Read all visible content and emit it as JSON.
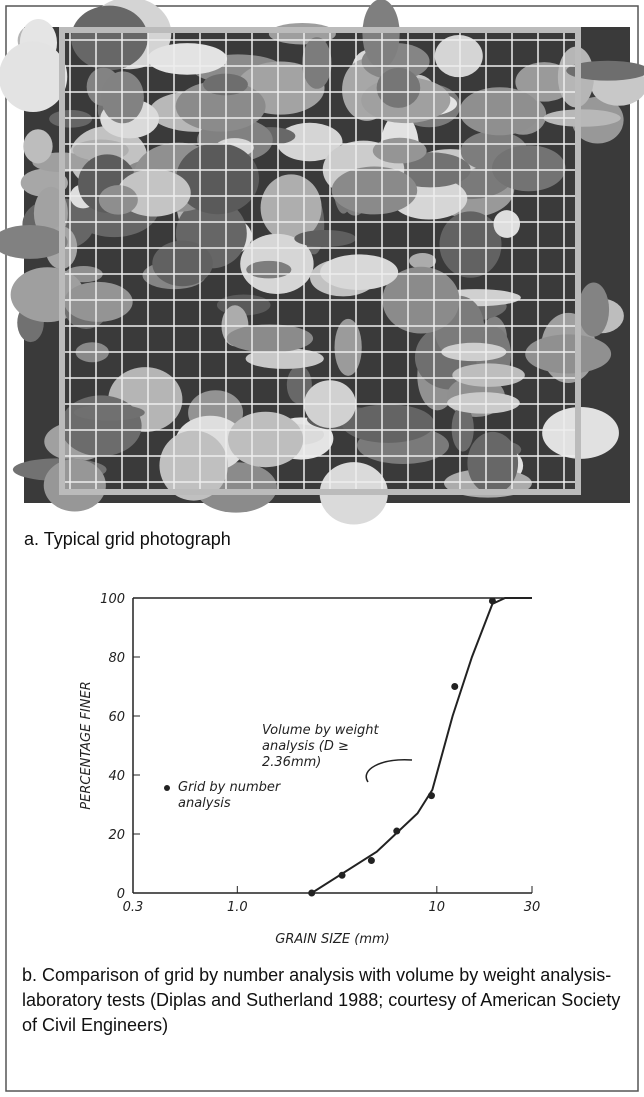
{
  "photo_caption": "a.  Typical grid photograph",
  "chart_caption": "b.  Comparison of grid by number analysis with volume by weight analysis-laboratory tests (Diplas and Sutherland 1988; courtesy of American Society of Civil Engineers)",
  "chart_data": {
    "type": "scatter",
    "xlabel": "GRAIN SIZE (mm)",
    "ylabel": "PERCENTAGE FINER",
    "xscale": "log",
    "xlim": [
      0.3,
      30
    ],
    "xticks": [
      0.3,
      {
        "value": 1,
        "label": "1.0"
      },
      10,
      30
    ],
    "ylim": [
      0,
      100
    ],
    "yticks": [
      0,
      20,
      40,
      60,
      80,
      100
    ],
    "series": [
      {
        "name": "Volume by weight analysis (D ≥ 2.36mm)",
        "type": "line",
        "color": "#222",
        "x": [
          2.36,
          5,
          8,
          9.5,
          12,
          15,
          19,
          22,
          30
        ],
        "values": [
          0,
          14,
          27,
          35,
          60,
          80,
          98,
          100,
          100
        ]
      },
      {
        "name": "Grid by number analysis",
        "type": "scatter",
        "color": "#222",
        "x": [
          2.36,
          3.35,
          4.7,
          6.3,
          9.4,
          12.3,
          19
        ],
        "values": [
          0,
          6,
          11,
          21,
          33,
          70,
          99
        ]
      }
    ]
  }
}
